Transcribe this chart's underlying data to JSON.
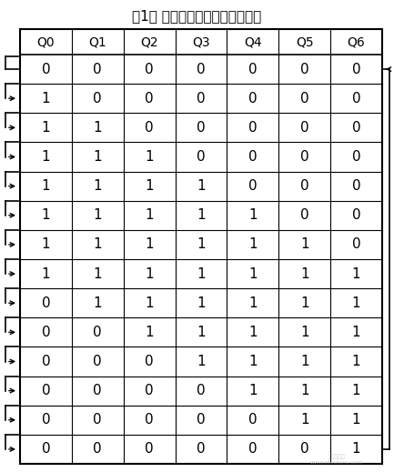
{
  "title": "表1： 十四进制计数器状态转换表",
  "headers": [
    "Q0",
    "Q1",
    "Q2",
    "Q3",
    "Q4",
    "Q5",
    "Q6"
  ],
  "rows": [
    [
      0,
      0,
      0,
      0,
      0,
      0,
      0
    ],
    [
      1,
      0,
      0,
      0,
      0,
      0,
      0
    ],
    [
      1,
      1,
      0,
      0,
      0,
      0,
      0
    ],
    [
      1,
      1,
      1,
      0,
      0,
      0,
      0
    ],
    [
      1,
      1,
      1,
      1,
      0,
      0,
      0
    ],
    [
      1,
      1,
      1,
      1,
      1,
      0,
      0
    ],
    [
      1,
      1,
      1,
      1,
      1,
      1,
      0
    ],
    [
      1,
      1,
      1,
      1,
      1,
      1,
      1
    ],
    [
      0,
      1,
      1,
      1,
      1,
      1,
      1
    ],
    [
      0,
      0,
      1,
      1,
      1,
      1,
      1
    ],
    [
      0,
      0,
      0,
      1,
      1,
      1,
      1
    ],
    [
      0,
      0,
      0,
      0,
      1,
      1,
      1
    ],
    [
      0,
      0,
      0,
      0,
      0,
      1,
      1
    ],
    [
      0,
      0,
      0,
      0,
      0,
      0,
      1
    ]
  ],
  "bg_color": "#ffffff",
  "text_color": "#000000",
  "line_color": "#000000",
  "title_fontsize": 11,
  "header_fontsize": 10,
  "cell_fontsize": 11
}
